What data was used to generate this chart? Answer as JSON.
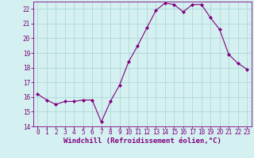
{
  "hours": [
    0,
    1,
    2,
    3,
    4,
    5,
    6,
    7,
    8,
    9,
    10,
    11,
    12,
    13,
    14,
    15,
    16,
    17,
    18,
    19,
    20,
    21,
    22,
    23
  ],
  "values": [
    16.2,
    15.8,
    15.5,
    15.7,
    15.7,
    15.8,
    15.8,
    14.3,
    15.7,
    16.8,
    18.4,
    19.5,
    20.7,
    21.9,
    22.4,
    22.3,
    21.8,
    22.3,
    22.3,
    21.4,
    20.6,
    18.9,
    18.3,
    17.9
  ],
  "line_color": "#800080",
  "marker": "D",
  "marker_size": 2.0,
  "bg_color": "#d4f0f0",
  "grid_color": "#b0d8d8",
  "xlabel": "Windchill (Refroidissement éolien,°C)",
  "ylim": [
    14,
    22.5
  ],
  "yticks": [
    14,
    15,
    16,
    17,
    18,
    19,
    20,
    21,
    22
  ],
  "xticks": [
    0,
    1,
    2,
    3,
    4,
    5,
    6,
    7,
    8,
    9,
    10,
    11,
    12,
    13,
    14,
    15,
    16,
    17,
    18,
    19,
    20,
    21,
    22,
    23
  ],
  "tick_label_size": 5.5,
  "xlabel_size": 6.5
}
